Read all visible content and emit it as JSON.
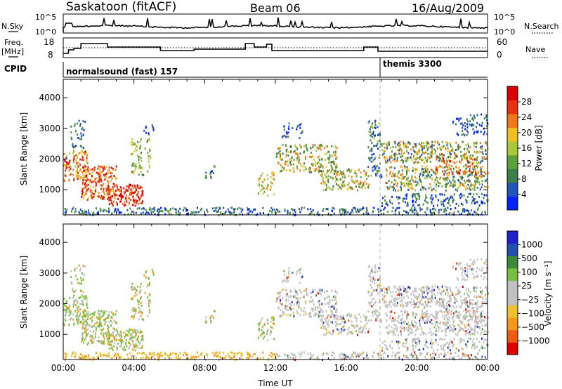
{
  "header": {
    "title": "Saskatoon (fitACF)",
    "beam": "Beam 06",
    "date": "16/Aug/2009"
  },
  "strips": {
    "nsky": {
      "label": "N.Sky",
      "tick_hi": "10^5",
      "tick_lo": "10^0"
    },
    "nsearch": {
      "label": "N.Search",
      "tick_hi": "10^5",
      "tick_lo": "10^0"
    },
    "freq": {
      "label_line1": "Freq.",
      "label_line2": "[MHz]",
      "tick_hi": "18",
      "tick_lo": "8"
    },
    "nave": {
      "label": "Nave",
      "tick_hi": "60",
      "tick_lo": "0"
    },
    "cpid": {
      "label": "CPID",
      "mode1": "normalsound (fast) 157",
      "mode2": "themis 3300"
    }
  },
  "colors": {
    "power": [
      "#0022ff",
      "#2255bb",
      "#3c7e4a",
      "#5aa03c",
      "#a8c83a",
      "#f0c020",
      "#f07818",
      "#e83010",
      "#dd0000"
    ],
    "velocity": [
      "#e00000",
      "#f05a10",
      "#f09a18",
      "#f0c02a",
      "#c0c0c0",
      "#c0c0c0",
      "#78c040",
      "#3a8a3a",
      "#2050b0",
      "#2020cc"
    ]
  },
  "chart_data": [
    {
      "type": "heatmap",
      "name": "power",
      "xlabel": "",
      "ylabel": "Slant Range [km]",
      "xlim": [
        0,
        24
      ],
      "ylim": [
        180,
        4600
      ],
      "yticks": [
        "1000",
        "2000",
        "3000",
        "4000"
      ],
      "colorbar_label": "Power [dB]",
      "colorbar_ticks": [
        "4",
        "8",
        "12",
        "16",
        "20",
        "24",
        "28"
      ],
      "colorbar_range": [
        0,
        32
      ]
    },
    {
      "type": "heatmap",
      "name": "velocity",
      "xlabel": "Time UT",
      "ylabel": "Slant Range [km]",
      "xlim": [
        0,
        24
      ],
      "ylim": [
        180,
        4600
      ],
      "xticks": [
        "00:00",
        "04:00",
        "08:00",
        "12:00",
        "16:00",
        "20:00",
        "00:00"
      ],
      "yticks": [
        "1000",
        "2000",
        "3000",
        "4000"
      ],
      "colorbar_label": "Velocity [m s⁻¹]",
      "colorbar_ticks": [
        "1000",
        "500",
        "100",
        "25",
        "−25",
        "−100",
        "−500",
        "−1000"
      ]
    }
  ]
}
